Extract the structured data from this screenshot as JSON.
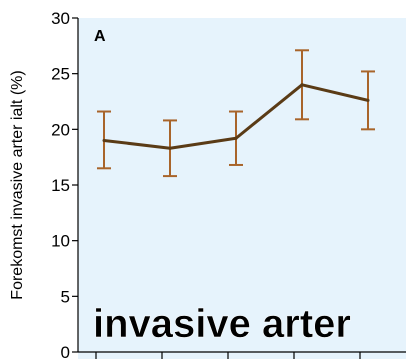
{
  "chart_data": {
    "type": "line",
    "panel_label": "A",
    "ylabel": "Forekomst invasive arter ialt (%)",
    "ylim": [
      0,
      30
    ],
    "yticks": [
      0,
      5,
      10,
      15,
      20,
      25,
      30
    ],
    "grid": false,
    "overlay_text": "invasive arter",
    "x": [
      1,
      2,
      3,
      4,
      5
    ],
    "series": [
      {
        "values": [
          19.0,
          18.3,
          19.2,
          24.0,
          22.6
        ],
        "error_low": [
          16.5,
          15.8,
          16.8,
          20.9,
          20.0
        ],
        "error_high": [
          21.6,
          20.8,
          21.6,
          27.1,
          25.2
        ]
      }
    ],
    "colors": {
      "plot_background": "#e6f3fc",
      "line": "#5a3b16",
      "error_bars": "#a8642a",
      "axis": "#000000"
    }
  }
}
